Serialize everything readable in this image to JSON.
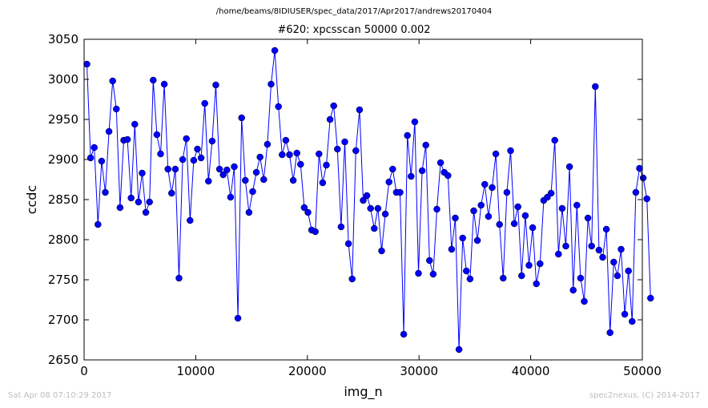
{
  "header": {
    "path": "/home/beams/8IDIUSER/spec_data/2017/Apr2017/andrews20170404"
  },
  "footer": {
    "timestamp": "Sat Apr 08 07:10:29 2017",
    "credit": "spec2nexus, (C) 2014-2017"
  },
  "chart_data": {
    "type": "line",
    "title": "#620: xpcsscan 50000 0.002",
    "xlabel": "img_n",
    "ylabel": "ccdc",
    "xlim": [
      0,
      50000
    ],
    "ylim": [
      2650,
      3050
    ],
    "xticks": [
      "0",
      "10000",
      "20000",
      "30000",
      "40000",
      "50000"
    ],
    "yticks": [
      "2650",
      "2700",
      "2750",
      "2800",
      "2850",
      "2900",
      "2950",
      "3000",
      "3050"
    ],
    "grid": false,
    "legend": "none",
    "line_color": "#0000ff",
    "marker": "circle",
    "x_start": 250,
    "x_step": 330,
    "series": [
      {
        "values": [
          3019,
          2902,
          2915,
          2819,
          2898,
          2859,
          2935,
          2998,
          2963,
          2840,
          2924,
          2925,
          2852,
          2944,
          2847,
          2883,
          2834,
          2847,
          2999,
          2931,
          2907,
          2994,
          2888,
          2858,
          2888,
          2752,
          2900,
          2926,
          2824,
          2899,
          2913,
          2902,
          2970,
          2873,
          2923,
          2993,
          2888,
          2881,
          2887,
          2853,
          2891,
          2702,
          2952,
          2874,
          2834,
          2860,
          2884,
          2903,
          2875,
          2919,
          2994,
          3036,
          2966,
          2906,
          2924,
          2906,
          2874,
          2908,
          2894,
          2840,
          2834,
          2812,
          2810,
          2907,
          2871,
          2893,
          2950,
          2967,
          2913,
          2816,
          2922,
          2795,
          2751,
          2911,
          2962,
          2849,
          2855,
          2839,
          2814,
          2839,
          2786,
          2832,
          2872,
          2888,
          2859,
          2859,
          2682,
          2930,
          2879,
          2947,
          2758,
          2886,
          2918,
          2774,
          2757,
          2838,
          2896,
          2884,
          2880,
          2788,
          2827,
          2663,
          2802,
          2761,
          2751,
          2836,
          2799,
          2843,
          2869,
          2829,
          2865,
          2907,
          2819,
          2752,
          2859,
          2911,
          2820,
          2841,
          2755,
          2830,
          2768,
          2815,
          2745,
          2770,
          2849,
          2853,
          2858,
          2924,
          2782,
          2839,
          2792,
          2891,
          2737,
          2843,
          2752,
          2723,
          2827,
          2792,
          2991,
          2787,
          2778,
          2813,
          2684,
          2772,
          2755,
          2788,
          2707,
          2761,
          2698,
          2859,
          2889,
          2877,
          2851,
          2727
        ]
      }
    ]
  }
}
